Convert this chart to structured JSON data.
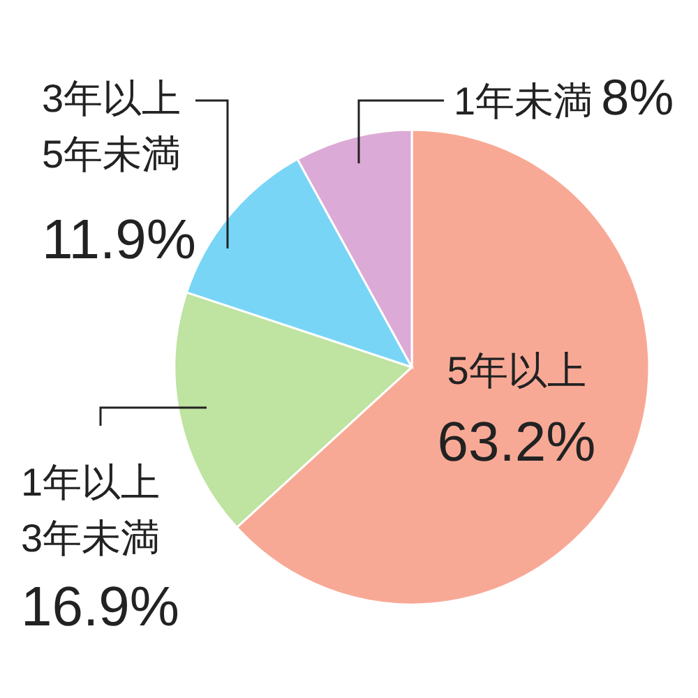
{
  "chart_data": {
    "type": "pie",
    "categories": [
      "5年以上",
      "1年以上\n3年未満",
      "3年以上\n5年未満",
      "1年未満"
    ],
    "values": [
      63.2,
      16.9,
      11.9,
      8
    ],
    "value_labels": [
      "63.2%",
      "16.9%",
      "11.9%",
      "8%"
    ],
    "colors": [
      "#f8a996",
      "#bfe3a0",
      "#79d5f6",
      "#dcaad6"
    ]
  }
}
